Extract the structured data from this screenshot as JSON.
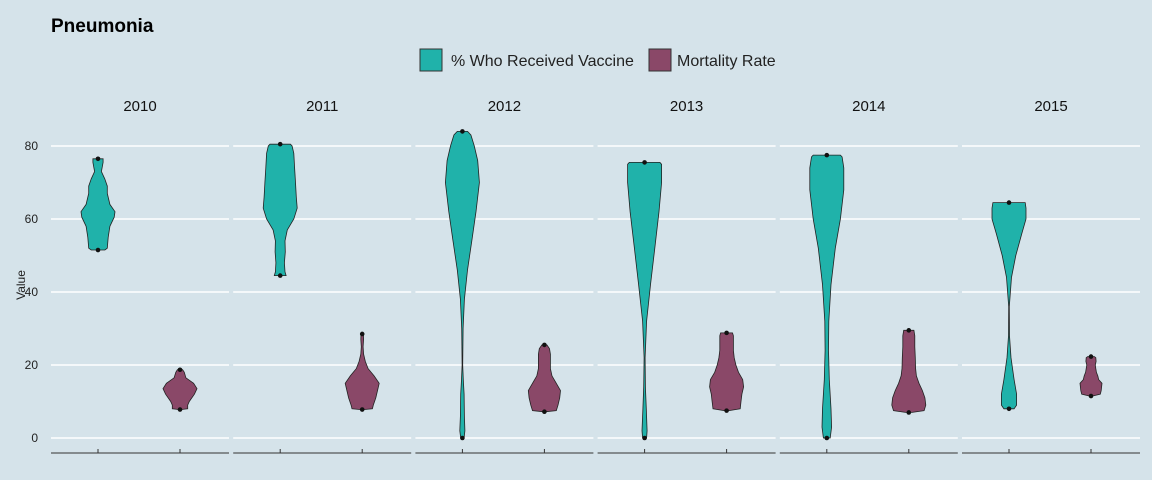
{
  "chart_data": {
    "type": "violin",
    "title": "Pneumonia",
    "xlabel": "",
    "ylabel": "Value",
    "ylim": [
      -4,
      87
    ],
    "yticks": [
      0,
      20,
      40,
      60,
      80
    ],
    "grid": true,
    "legend_position": "top",
    "facets": [
      "2010",
      "2011",
      "2012",
      "2013",
      "2014",
      "2015"
    ],
    "series": [
      {
        "name": "% Who Received Vaccine",
        "color": "#20b2aa",
        "data": [
          {
            "facet": "2010",
            "min": 51.5,
            "max": 76.5,
            "profile": [
              [
                51.5,
                0.4
              ],
              [
                52,
                0.55
              ],
              [
                55,
                0.6
              ],
              [
                58,
                0.7
              ],
              [
                60.5,
                0.95
              ],
              [
                62,
                1.0
              ],
              [
                64,
                0.7
              ],
              [
                67,
                0.55
              ],
              [
                69,
                0.55
              ],
              [
                71,
                0.4
              ],
              [
                73,
                0.2
              ],
              [
                75.5,
                0.3
              ],
              [
                76.5,
                0.3
              ]
            ]
          },
          {
            "facet": "2011",
            "min": 44.5,
            "max": 80.5,
            "profile": [
              [
                44.5,
                0.35
              ],
              [
                45.5,
                0.28
              ],
              [
                48,
                0.25
              ],
              [
                51,
                0.3
              ],
              [
                54,
                0.28
              ],
              [
                57,
                0.42
              ],
              [
                60,
                0.8
              ],
              [
                63,
                1.0
              ],
              [
                66,
                0.95
              ],
              [
                70,
                0.9
              ],
              [
                74,
                0.85
              ],
              [
                78,
                0.8
              ],
              [
                80,
                0.7
              ],
              [
                80.5,
                0.6
              ]
            ]
          },
          {
            "facet": "2012",
            "min": 0,
            "max": 84,
            "profile": [
              [
                0,
                0.1
              ],
              [
                2,
                0.15
              ],
              [
                6,
                0.12
              ],
              [
                12,
                0.1
              ],
              [
                16,
                0.05
              ],
              [
                20,
                0.02
              ],
              [
                30,
                0.04
              ],
              [
                38,
                0.12
              ],
              [
                46,
                0.3
              ],
              [
                54,
                0.55
              ],
              [
                62,
                0.8
              ],
              [
                70,
                1.0
              ],
              [
                76,
                0.9
              ],
              [
                80,
                0.7
              ],
              [
                83,
                0.5
              ],
              [
                84,
                0.3
              ]
            ]
          },
          {
            "facet": "2013",
            "min": 0,
            "max": 75.5,
            "profile": [
              [
                0,
                0.12
              ],
              [
                2,
                0.15
              ],
              [
                8,
                0.1
              ],
              [
                14,
                0.05
              ],
              [
                22,
                0.03
              ],
              [
                32,
                0.12
              ],
              [
                42,
                0.35
              ],
              [
                52,
                0.6
              ],
              [
                62,
                0.85
              ],
              [
                70,
                1.0
              ],
              [
                75,
                1.0
              ],
              [
                75.5,
                0.9
              ]
            ]
          },
          {
            "facet": "2014",
            "min": 0,
            "max": 77.5,
            "profile": [
              [
                0,
                0.2
              ],
              [
                3,
                0.28
              ],
              [
                8,
                0.25
              ],
              [
                16,
                0.15
              ],
              [
                24,
                0.1
              ],
              [
                32,
                0.12
              ],
              [
                42,
                0.25
              ],
              [
                52,
                0.5
              ],
              [
                60,
                0.8
              ],
              [
                68,
                1.0
              ],
              [
                74,
                1.0
              ],
              [
                77,
                0.9
              ],
              [
                77.5,
                0.8
              ]
            ]
          },
          {
            "facet": "2015",
            "min": 8,
            "max": 64.5,
            "profile": [
              [
                8,
                0.3
              ],
              [
                9,
                0.45
              ],
              [
                12,
                0.45
              ],
              [
                16,
                0.3
              ],
              [
                22,
                0.12
              ],
              [
                28,
                0.03
              ],
              [
                36,
                0.02
              ],
              [
                44,
                0.15
              ],
              [
                50,
                0.4
              ],
              [
                56,
                0.75
              ],
              [
                60,
                1.0
              ],
              [
                63,
                1.0
              ],
              [
                64.5,
                0.95
              ]
            ]
          }
        ]
      },
      {
        "name": "Mortality Rate",
        "color": "#8a4868",
        "data": [
          {
            "facet": "2010",
            "min": 7.8,
            "max": 18.7,
            "profile": [
              [
                7.8,
                0.1
              ],
              [
                8,
                0.45
              ],
              [
                9,
                0.45
              ],
              [
                10,
                0.55
              ],
              [
                12,
                0.85
              ],
              [
                13.5,
                1.0
              ],
              [
                15,
                0.8
              ],
              [
                16.5,
                0.35
              ],
              [
                18,
                0.25
              ],
              [
                18.7,
                0.15
              ]
            ]
          },
          {
            "facet": "2011",
            "min": 7.8,
            "max": 28.5,
            "profile": [
              [
                7.8,
                0.15
              ],
              [
                8,
                0.6
              ],
              [
                9,
                0.65
              ],
              [
                11,
                0.8
              ],
              [
                13,
                0.9
              ],
              [
                15,
                1.0
              ],
              [
                17,
                0.7
              ],
              [
                19,
                0.35
              ],
              [
                21,
                0.18
              ],
              [
                23,
                0.08
              ],
              [
                25,
                0.05
              ],
              [
                27,
                0.08
              ],
              [
                28.5,
                0.07
              ]
            ]
          },
          {
            "facet": "2012",
            "min": 7.2,
            "max": 25.5,
            "profile": [
              [
                7.2,
                0.1
              ],
              [
                7.5,
                0.7
              ],
              [
                9,
                0.8
              ],
              [
                11,
                0.9
              ],
              [
                13,
                0.95
              ],
              [
                15,
                0.7
              ],
              [
                17,
                0.45
              ],
              [
                19,
                0.35
              ],
              [
                21,
                0.35
              ],
              [
                23,
                0.35
              ],
              [
                24.5,
                0.3
              ],
              [
                25.5,
                0.15
              ]
            ]
          },
          {
            "facet": "2013",
            "min": 7.5,
            "max": 28.8,
            "profile": [
              [
                7.5,
                0.15
              ],
              [
                8,
                0.8
              ],
              [
                10,
                0.85
              ],
              [
                12,
                0.9
              ],
              [
                14,
                1.0
              ],
              [
                16,
                0.95
              ],
              [
                18,
                0.7
              ],
              [
                20,
                0.55
              ],
              [
                22,
                0.45
              ],
              [
                24,
                0.4
              ],
              [
                26,
                0.4
              ],
              [
                28,
                0.4
              ],
              [
                28.8,
                0.35
              ]
            ]
          },
          {
            "facet": "2014",
            "min": 7.0,
            "max": 29.5,
            "profile": [
              [
                7,
                0.2
              ],
              [
                7.5,
                0.9
              ],
              [
                9,
                1.0
              ],
              [
                11,
                0.95
              ],
              [
                13,
                0.8
              ],
              [
                15,
                0.6
              ],
              [
                17,
                0.45
              ],
              [
                19,
                0.4
              ],
              [
                22,
                0.38
              ],
              [
                25,
                0.35
              ],
              [
                28,
                0.35
              ],
              [
                29.5,
                0.3
              ]
            ]
          },
          {
            "facet": "2015",
            "min": 11.5,
            "max": 22.3,
            "profile": [
              [
                11.5,
                0.1
              ],
              [
                12,
                0.55
              ],
              [
                13,
                0.6
              ],
              [
                15,
                0.65
              ],
              [
                16,
                0.45
              ],
              [
                17,
                0.4
              ],
              [
                18,
                0.32
              ],
              [
                19,
                0.28
              ],
              [
                20,
                0.25
              ],
              [
                21,
                0.3
              ],
              [
                22,
                0.28
              ],
              [
                22.3,
                0.2
              ]
            ]
          }
        ]
      }
    ]
  }
}
